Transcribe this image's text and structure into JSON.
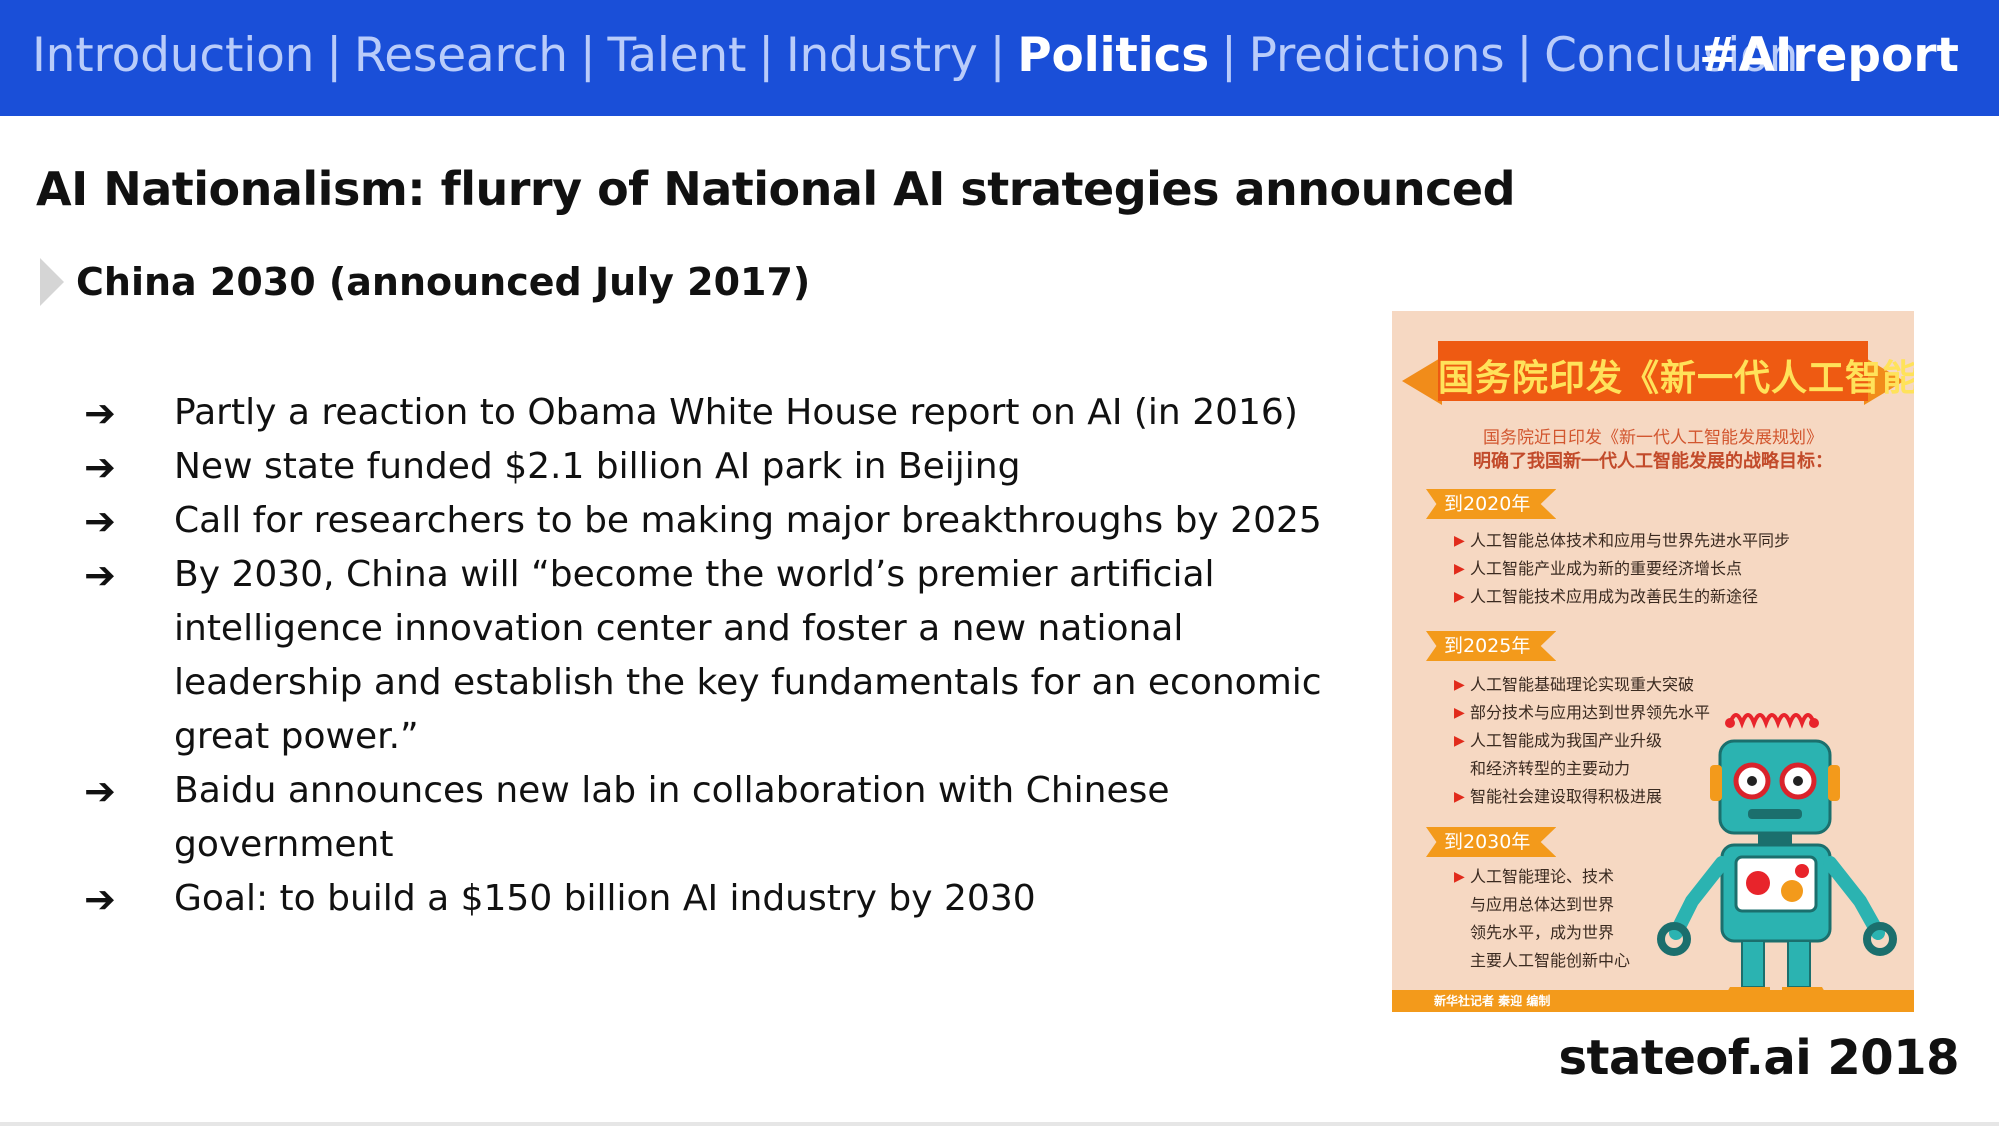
{
  "nav": {
    "items": [
      {
        "label": "Introduction",
        "active": false
      },
      {
        "label": "Research",
        "active": false
      },
      {
        "label": "Talent",
        "active": false
      },
      {
        "label": "Industry",
        "active": false
      },
      {
        "label": "Politics",
        "active": true
      },
      {
        "label": "Predictions",
        "active": false
      },
      {
        "label": "Conclusion",
        "active": false
      }
    ],
    "separator": "|",
    "hashtag": "#AIreport"
  },
  "slide": {
    "title": "AI Nationalism: flurry of National AI strategies announced",
    "subheading": "China 2030 (announced July 2017)",
    "bullet_glyph": "➔",
    "bullets": [
      "Partly a reaction to Obama White House report on AI (in 2016)",
      "New state funded $2.1 billion AI park in Beijing",
      "Call for researchers to be making major breakthroughs by 2025",
      "By 2030, China will “become the world’s premier artificial intelligence innovation center and foster a new national leadership and establish the key fundamentals for an economic great power.”",
      "Baidu announces new lab in collaboration with Chinese government",
      "Goal: to build a $150 billion AI industry by 2030"
    ],
    "footer": "stateof.ai 2018"
  },
  "poster": {
    "title": "国务院印发《新一代人工智能发展规划》",
    "line1": "国务院近日印发《新一代人工智能发展规划》",
    "line2": "明确了我国新一代人工智能发展的战略目标：",
    "sections": [
      {
        "tag": "到2020年",
        "items": [
          "人工智能总体技术和应用与世界先进水平同步",
          "人工智能产业成为新的重要经济增长点",
          "人工智能技术应用成为改善民生的新途径"
        ]
      },
      {
        "tag": "到2025年",
        "items": [
          "人工智能基础理论实现重大突破",
          "部分技术与应用达到世界领先水平",
          "人工智能成为我国产业升级",
          "和经济转型的主要动力",
          "智能社会建设取得积极进展"
        ]
      },
      {
        "tag": "到2030年",
        "items": [
          "人工智能理论、技术",
          "与应用总体达到世界",
          "领先水平，成为世界",
          "主要人工智能创新中心"
        ]
      }
    ],
    "credit": "新华社记者 秦迎 编制"
  },
  "colors": {
    "topbar": "#1a4fd8",
    "nav_inactive": "#b9ccfa",
    "nav_active": "#ffffff",
    "poster_bg": "#f6d8c2",
    "poster_orange": "#f39a1b",
    "poster_red": "#ee5a12"
  }
}
